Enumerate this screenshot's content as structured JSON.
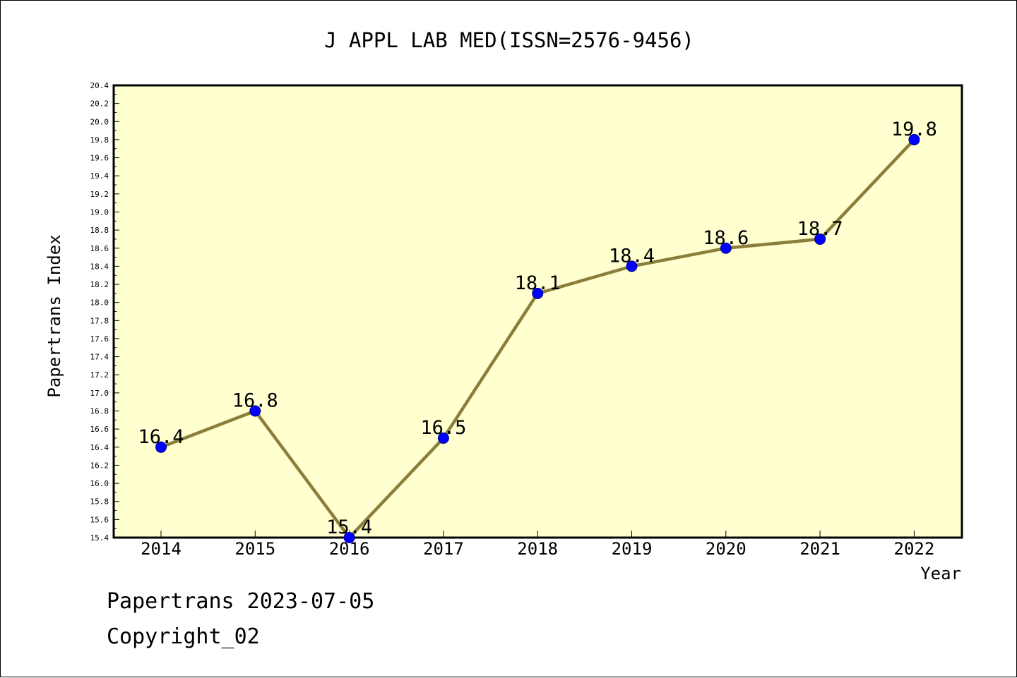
{
  "chart_data": {
    "type": "line",
    "title": "J APPL LAB MED(ISSN=2576-9456)",
    "xlabel": "Year",
    "ylabel": "Papertrans Index",
    "categories": [
      "2014",
      "2015",
      "2016",
      "2017",
      "2018",
      "2019",
      "2020",
      "2021",
      "2022"
    ],
    "values": [
      16.4,
      16.8,
      15.4,
      16.5,
      18.1,
      18.4,
      18.6,
      18.7,
      19.8
    ],
    "data_labels": [
      "16.4",
      "16.8",
      "15.4",
      "16.5",
      "18.1",
      "18.4",
      "18.6",
      "18.7",
      "19.8"
    ],
    "ylim": [
      15.4,
      20.4
    ],
    "yticks": [
      "15.4",
      "15.6",
      "15.8",
      "16.0",
      "16.2",
      "16.4",
      "16.6",
      "16.8",
      "17.0",
      "17.2",
      "17.4",
      "17.6",
      "17.8",
      "18.0",
      "18.2",
      "18.4",
      "18.6",
      "18.8",
      "19.0",
      "19.2",
      "19.4",
      "19.6",
      "19.8",
      "20.0",
      "20.2",
      "20.4"
    ],
    "grid": false,
    "colors": {
      "plot_background": "#ffffd0",
      "line": "#8b7d3a",
      "marker": "#0000ff"
    }
  },
  "footer": {
    "line1": "Papertrans 2023-07-05",
    "line2": "Copyright_02"
  }
}
